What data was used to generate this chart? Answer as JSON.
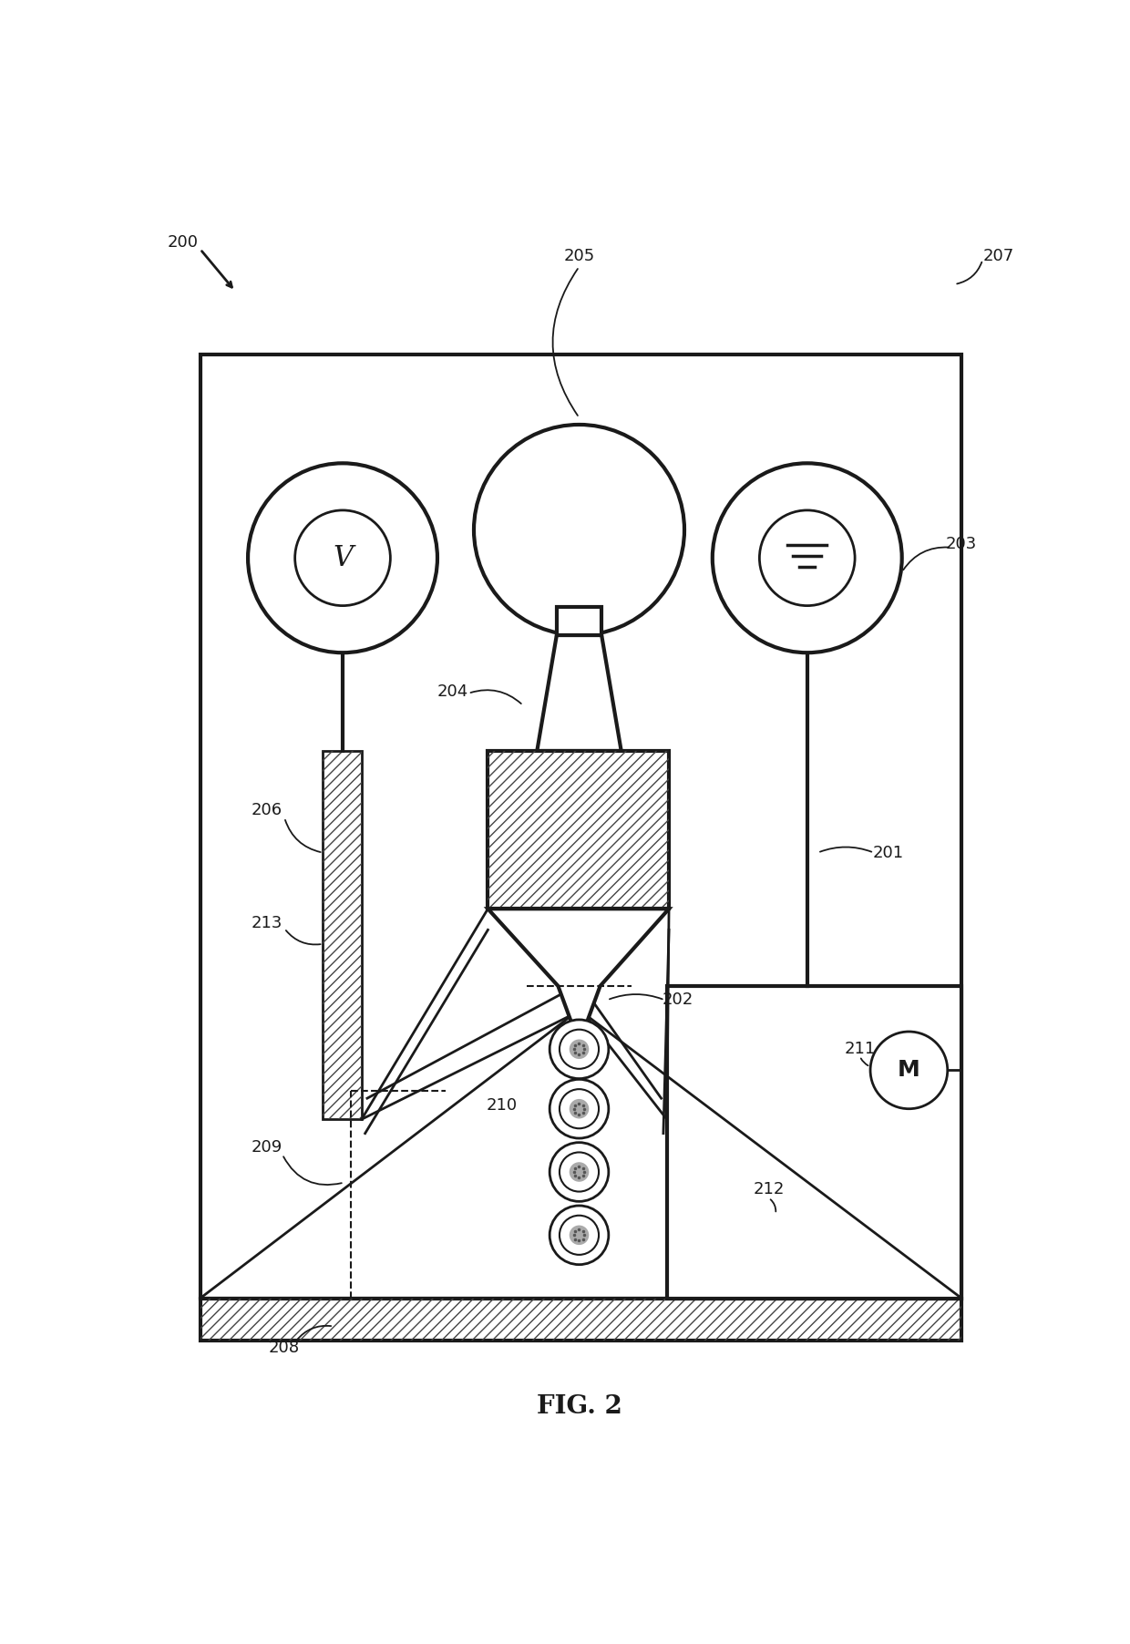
{
  "bg_color": "#ffffff",
  "line_color": "#1a1a1a",
  "hatch_color": "#444444",
  "figure_label": "FIG. 2",
  "font_size_label": 13,
  "font_size_fig": 20
}
